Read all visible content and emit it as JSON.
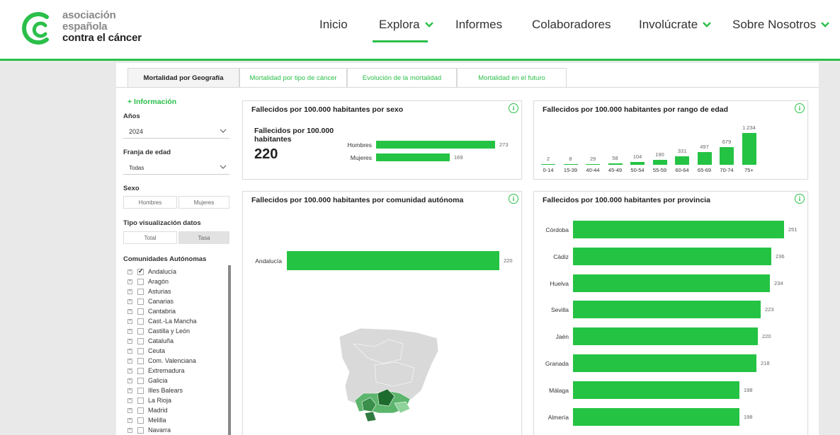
{
  "header": {
    "logo_lines": [
      "asociación",
      "española",
      "contra el cáncer"
    ],
    "nav": [
      {
        "label": "Inicio",
        "dropdown": false
      },
      {
        "label": "Explora",
        "dropdown": true
      },
      {
        "label": "Informes",
        "dropdown": false
      },
      {
        "label": "Colaboradores",
        "dropdown": false
      },
      {
        "label": "Involúcrate",
        "dropdown": true
      },
      {
        "label": "Sobre Nosotros",
        "dropdown": true
      }
    ]
  },
  "tabs": [
    {
      "label": "Mortalidad por Geografía",
      "active": true
    },
    {
      "label": "Mortalidad por tipo de cáncer",
      "active": false
    },
    {
      "label": "Evolución de la mortalidad",
      "active": false
    },
    {
      "label": "Mortalidad en el futuro",
      "active": false
    }
  ],
  "filters": {
    "info_link": "+ Información",
    "years_label": "Años",
    "years_value": "2024",
    "age_label": "Franja de edad",
    "age_value": "Todas",
    "sex_label": "Sexo",
    "sex_options": [
      "Hombres",
      "Mujeres"
    ],
    "viz_label": "Tipo visualización datos",
    "viz_options": [
      "Total",
      "Tasa"
    ],
    "viz_selected": "Tasa",
    "communities_label": "Comunidades Autónomas",
    "communities": [
      {
        "name": "Andalucía",
        "checked": true
      },
      {
        "name": "Aragón",
        "checked": false
      },
      {
        "name": "Asturias",
        "checked": false
      },
      {
        "name": "Canarias",
        "checked": false
      },
      {
        "name": "Cantabria",
        "checked": false
      },
      {
        "name": "Cast.-La Mancha",
        "checked": false
      },
      {
        "name": "Castilla y León",
        "checked": false
      },
      {
        "name": "Cataluña",
        "checked": false
      },
      {
        "name": "Ceuta",
        "checked": false
      },
      {
        "name": "Com. Valenciana",
        "checked": false
      },
      {
        "name": "Extremadura",
        "checked": false
      },
      {
        "name": "Galicia",
        "checked": false
      },
      {
        "name": "Illes Balears",
        "checked": false
      },
      {
        "name": "La Rioja",
        "checked": false
      },
      {
        "name": "Madrid",
        "checked": false
      },
      {
        "name": "Melilla",
        "checked": false
      },
      {
        "name": "Navarra",
        "checked": false
      }
    ]
  },
  "cards": {
    "sex": {
      "title": "Fallecidos por 100.000 habitantes por sexo",
      "kpi_label": "Fallecidos por 100.000 habitantes",
      "kpi_value": "220"
    },
    "age": {
      "title": "Fallecidos por 100.000 habitantes por rango de edad"
    },
    "community": {
      "title": "Fallecidos por 100.000 habitantes por comunidad autónoma"
    },
    "province": {
      "title": "Fallecidos por 100.000 habitantes por provincia"
    }
  },
  "colors": {
    "accent": "#2bbf4a",
    "bar": "#24c343"
  },
  "chart_data": [
    {
      "type": "bar",
      "orientation": "horizontal",
      "categories": [
        "Hombres",
        "Mujeres"
      ],
      "values": [
        273,
        169
      ],
      "value_labels": [
        "273",
        "169"
      ]
    },
    {
      "type": "bar",
      "orientation": "vertical",
      "categories": [
        "0-14",
        "15-39",
        "40-44",
        "45-49",
        "50-54",
        "55-59",
        "60-64",
        "65-69",
        "70-74",
        "75+"
      ],
      "values": [
        2,
        8,
        29,
        58,
        104,
        190,
        331,
        497,
        679,
        1234
      ],
      "value_labels": [
        "2",
        "8",
        "29",
        "58",
        "104",
        "190",
        "331",
        "497",
        "679",
        "1.234"
      ]
    },
    {
      "type": "bar",
      "orientation": "horizontal",
      "categories": [
        "Andalucía"
      ],
      "values": [
        220
      ],
      "value_labels": [
        "220"
      ]
    },
    {
      "type": "bar",
      "orientation": "horizontal",
      "categories": [
        "Córdoba",
        "Cádiz",
        "Huelva",
        "Sevilla",
        "Jaén",
        "Granada",
        "Málaga",
        "Almería"
      ],
      "values": [
        251,
        236,
        234,
        223,
        220,
        218,
        198,
        198
      ],
      "value_labels": [
        "251",
        "236",
        "234",
        "223",
        "220",
        "218",
        "198",
        "198"
      ]
    }
  ]
}
